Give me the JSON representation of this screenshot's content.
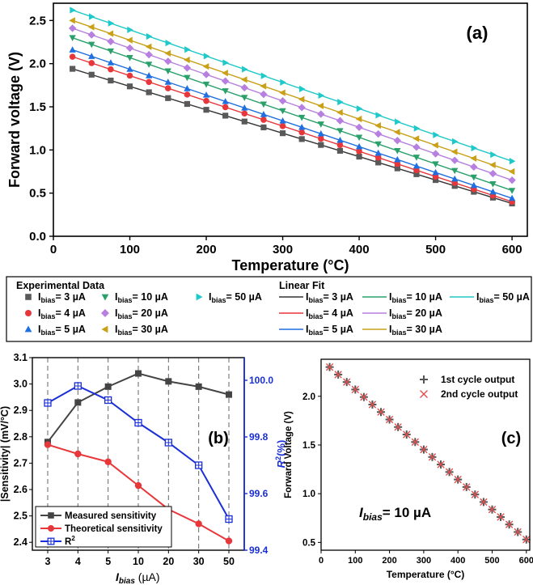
{
  "chart_data": [
    {
      "panel_label": "(a)",
      "type": "scatter",
      "xlabel": "Temperature (°C)",
      "ylabel": "Forward voltage (V)",
      "xlim": [
        0,
        620
      ],
      "ylim": [
        0,
        2.7
      ],
      "xticks": [
        "0",
        "100",
        "200",
        "300",
        "400",
        "500",
        "600"
      ],
      "yticks": [
        "0.0",
        "0.5",
        "1.0",
        "1.5",
        "2.0",
        "2.5"
      ],
      "x": [
        25,
        50,
        75,
        100,
        125,
        150,
        175,
        200,
        225,
        250,
        275,
        300,
        325,
        350,
        375,
        400,
        425,
        450,
        475,
        500,
        525,
        550,
        575,
        600
      ],
      "series": [
        {
          "name": "Ibias= 3 µA",
          "sub": "bias",
          "pre": "I",
          "post": "= 3 µA",
          "marker": "square",
          "color": "#595959",
          "fit_color": "#333333",
          "v0": 1.94,
          "v1": 0.38
        },
        {
          "name": "Ibias= 4 µA",
          "sub": "bias",
          "pre": "I",
          "post": "= 4 µA",
          "marker": "circle",
          "color": "#e8373b",
          "fit_color": "#e8373b",
          "v0": 2.08,
          "v1": 0.4
        },
        {
          "name": "Ibias= 5 µA",
          "sub": "bias",
          "pre": "I",
          "post": "= 5 µA",
          "marker": "triangle-up",
          "color": "#1f6fe0",
          "fit_color": "#1f6fe0",
          "v0": 2.16,
          "v1": 0.44
        },
        {
          "name": "Ibias= 10 µA",
          "sub": "bias",
          "pre": "I",
          "post": "= 10 µA",
          "marker": "triangle-down",
          "color": "#2aa06a",
          "fit_color": "#2aa06a",
          "v0": 2.3,
          "v1": 0.53
        },
        {
          "name": "Ibias= 20 µA",
          "sub": "bias",
          "pre": "I",
          "post": "= 20 µA",
          "marker": "diamond",
          "color": "#b77fe0",
          "fit_color": "#b77fe0",
          "v0": 2.41,
          "v1": 0.65
        },
        {
          "name": "Ibias= 30 µA",
          "sub": "bias",
          "pre": "I",
          "post": "= 30 µA",
          "marker": "triangle-left",
          "color": "#c9a016",
          "fit_color": "#c9a016",
          "v0": 2.5,
          "v1": 0.75
        },
        {
          "name": "Ibias= 50 µA",
          "sub": "bias",
          "pre": "I",
          "post": "= 50 µA",
          "marker": "triangle-right",
          "color": "#20c9c9",
          "fit_color": "#20c9c9",
          "v0": 2.62,
          "v1": 0.87
        }
      ],
      "legend": {
        "experimental_title": "Experimental Data",
        "fit_title": "Linear Fit",
        "placement": "bottom"
      }
    },
    {
      "panel_label": "(b)",
      "type": "line",
      "xlabel_pre": "I",
      "xlabel_sub": "bias",
      "xlabel_post": " (µA)",
      "ylabel": "|Sensitivity| (mV/°C)",
      "y2label_pre": "R",
      "y2label_sup": "2",
      "y2label_post": "(%)",
      "categories": [
        "3",
        "4",
        "5",
        "10",
        "20",
        "30",
        "50"
      ],
      "ylim": [
        2.37,
        3.1
      ],
      "yticks": [
        "2.4",
        "2.5",
        "2.6",
        "2.7",
        "2.8",
        "2.9",
        "3.0",
        "3.1"
      ],
      "y2lim": [
        99.4,
        100.08
      ],
      "y2ticks": [
        "99.4",
        "99.6",
        "99.8",
        "100.0"
      ],
      "series": [
        {
          "name": "Measured sensitivity",
          "axis": "left",
          "marker": "square",
          "color": "#444444",
          "values": [
            2.78,
            2.93,
            2.99,
            3.04,
            3.01,
            2.99,
            2.96
          ]
        },
        {
          "name": "Theoretical sensitivity",
          "axis": "left",
          "marker": "circle",
          "color": "#e8373b",
          "values": [
            2.77,
            2.735,
            2.705,
            2.615,
            2.525,
            2.47,
            2.405
          ]
        },
        {
          "name": "R",
          "name_sup": "2",
          "axis": "right",
          "marker": "square-plus",
          "color": "#1a2fd6",
          "values": [
            99.92,
            99.98,
            99.93,
            99.85,
            99.78,
            99.7,
            99.51
          ]
        }
      ],
      "grid": "dashed vertical lines at categories",
      "legend_placement": "bottom-left"
    },
    {
      "panel_label": "(c)",
      "type": "scatter",
      "xlabel": "Temperature (°C)",
      "ylabel": "Forward Voltage (V)",
      "xlim": [
        0,
        610
      ],
      "ylim": [
        0.42,
        2.38
      ],
      "xticks": [
        "0",
        "100",
        "200",
        "300",
        "400",
        "500",
        "600"
      ],
      "yticks": [
        "0.5",
        "1.0",
        "1.5",
        "2.0"
      ],
      "annotation_pre": "I",
      "annotation_sub": "bias",
      "annotation_post": "= 10 µA",
      "x": [
        25,
        50,
        75,
        100,
        125,
        150,
        175,
        200,
        225,
        250,
        275,
        300,
        325,
        350,
        375,
        400,
        425,
        450,
        475,
        500,
        525,
        550,
        575,
        600
      ],
      "series": [
        {
          "name": "1st cycle output",
          "marker": "plus",
          "color": "#555555",
          "v0": 2.3,
          "v1": 0.53
        },
        {
          "name": "2nd cycle output",
          "marker": "x",
          "color": "#e05050",
          "v0": 2.3,
          "v1": 0.53
        }
      ],
      "legend_placement": "top-right"
    }
  ]
}
